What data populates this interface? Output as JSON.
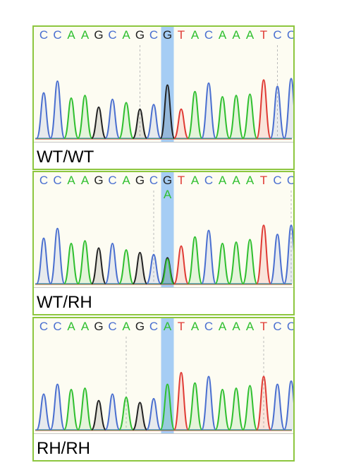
{
  "colors": {
    "A": "#2fbf2f",
    "C": "#4a6fd0",
    "G": "#222222",
    "T": "#e03a34",
    "highlight": "#a6cdf4",
    "border": "#8dc63f",
    "background": "#fdfcf2"
  },
  "panels": [
    {
      "label": "WT/WT",
      "bases": [
        "C",
        "C",
        "A",
        "A",
        "G",
        "C",
        "A",
        "G",
        "C",
        "G",
        "T",
        "A",
        "C",
        "A",
        "A",
        "A",
        "T",
        "C",
        "C"
      ],
      "highlight_index": 9,
      "alt_base": null
    },
    {
      "label": "WT/RH",
      "bases": [
        "C",
        "C",
        "A",
        "A",
        "G",
        "C",
        "A",
        "G",
        "C",
        "G",
        "T",
        "A",
        "C",
        "A",
        "A",
        "A",
        "T",
        "C",
        "C"
      ],
      "highlight_index": 9,
      "alt_base": "A"
    },
    {
      "label": "RH/RH",
      "bases": [
        "C",
        "C",
        "A",
        "A",
        "G",
        "C",
        "A",
        "G",
        "C",
        "A",
        "T",
        "A",
        "C",
        "A",
        "A",
        "A",
        "T",
        "C",
        "C"
      ],
      "highlight_index": 9,
      "alt_base": null
    }
  ],
  "traces": [
    {
      "dashed_markers": [
        7,
        17
      ],
      "peaks": [
        {
          "b": "C",
          "h": 0.7
        },
        {
          "b": "C",
          "h": 0.88
        },
        {
          "b": "A",
          "h": 0.62
        },
        {
          "b": "A",
          "h": 0.66
        },
        {
          "b": "G",
          "h": 0.48
        },
        {
          "b": "C",
          "h": 0.6
        },
        {
          "b": "A",
          "h": 0.55
        },
        {
          "b": "G",
          "h": 0.45
        },
        {
          "b": "C",
          "h": 0.52
        },
        {
          "b": "G",
          "h": 0.82
        },
        {
          "b": "T",
          "h": 0.45
        },
        {
          "b": "A",
          "h": 0.72
        },
        {
          "b": "C",
          "h": 0.85
        },
        {
          "b": "A",
          "h": 0.64
        },
        {
          "b": "A",
          "h": 0.66
        },
        {
          "b": "A",
          "h": 0.68
        },
        {
          "b": "T",
          "h": 0.9
        },
        {
          "b": "C",
          "h": 0.8
        },
        {
          "b": "C",
          "h": 0.92
        }
      ],
      "minor": []
    },
    {
      "dashed_markers": [
        8,
        18
      ],
      "peaks": [
        {
          "b": "C",
          "h": 0.7
        },
        {
          "b": "C",
          "h": 0.85
        },
        {
          "b": "A",
          "h": 0.62
        },
        {
          "b": "A",
          "h": 0.66
        },
        {
          "b": "G",
          "h": 0.55
        },
        {
          "b": "C",
          "h": 0.62
        },
        {
          "b": "A",
          "h": 0.52
        },
        {
          "b": "G",
          "h": 0.48
        },
        {
          "b": "C",
          "h": 0.45
        },
        {
          "b": "G",
          "h": 0.4
        },
        {
          "b": "T",
          "h": 0.58
        },
        {
          "b": "A",
          "h": 0.72
        },
        {
          "b": "C",
          "h": 0.82
        },
        {
          "b": "A",
          "h": 0.62
        },
        {
          "b": "A",
          "h": 0.64
        },
        {
          "b": "A",
          "h": 0.68
        },
        {
          "b": "T",
          "h": 0.9
        },
        {
          "b": "C",
          "h": 0.76
        },
        {
          "b": "C",
          "h": 0.9
        }
      ],
      "minor": [
        {
          "i": 9,
          "b": "A",
          "h": 0.38
        }
      ]
    },
    {
      "dashed_markers": [
        6,
        16
      ],
      "peaks": [
        {
          "b": "C",
          "h": 0.55
        },
        {
          "b": "C",
          "h": 0.7
        },
        {
          "b": "A",
          "h": 0.62
        },
        {
          "b": "A",
          "h": 0.64
        },
        {
          "b": "G",
          "h": 0.45
        },
        {
          "b": "C",
          "h": 0.55
        },
        {
          "b": "A",
          "h": 0.5
        },
        {
          "b": "G",
          "h": 0.42
        },
        {
          "b": "C",
          "h": 0.48
        },
        {
          "b": "A",
          "h": 0.7
        },
        {
          "b": "T",
          "h": 0.88
        },
        {
          "b": "A",
          "h": 0.72
        },
        {
          "b": "C",
          "h": 0.82
        },
        {
          "b": "A",
          "h": 0.62
        },
        {
          "b": "A",
          "h": 0.64
        },
        {
          "b": "A",
          "h": 0.68
        },
        {
          "b": "T",
          "h": 0.82
        },
        {
          "b": "C",
          "h": 0.7
        },
        {
          "b": "C",
          "h": 0.75
        }
      ],
      "minor": []
    }
  ]
}
